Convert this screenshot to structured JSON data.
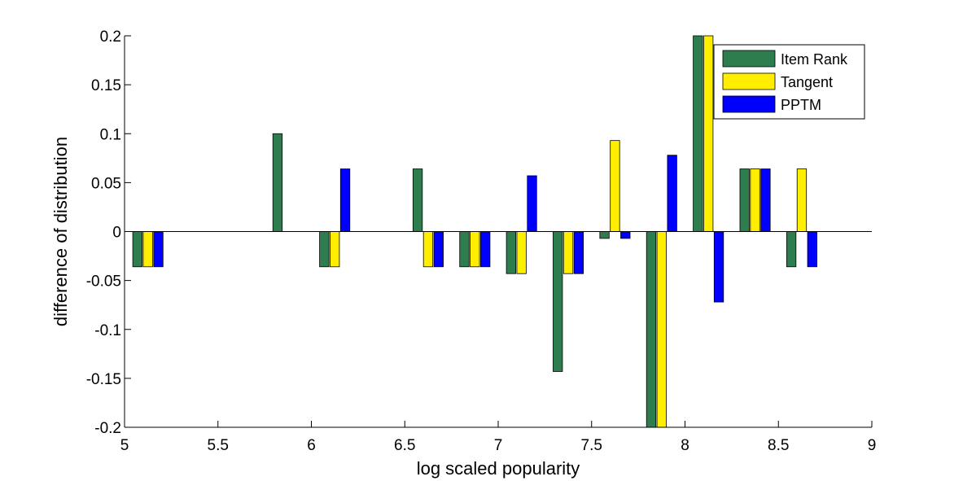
{
  "chart_data": {
    "type": "bar",
    "title": "",
    "xlabel": "log scaled popularity",
    "ylabel": "difference of distribution",
    "xlim": [
      5,
      9
    ],
    "ylim": [
      -0.2,
      0.2
    ],
    "xticks": [
      "5",
      "5.5",
      "6",
      "6.5",
      "7",
      "7.5",
      "8",
      "8.5",
      "9"
    ],
    "xtick_values": [
      5,
      5.5,
      6,
      6.5,
      7,
      7.5,
      8,
      8.5,
      9
    ],
    "yticks": [
      "-0.2",
      "-0.15",
      "-0.1",
      "-0.05",
      "0",
      "0.05",
      "0.1",
      "0.15",
      "0.2"
    ],
    "ytick_values": [
      -0.2,
      -0.15,
      -0.1,
      -0.05,
      0,
      0.05,
      0.1,
      0.15,
      0.2
    ],
    "grid": false,
    "legend_position": "top-right",
    "bar_width": 0.05,
    "x": [
      5.125,
      5.375,
      5.625,
      5.875,
      6.125,
      6.375,
      6.625,
      6.875,
      7.125,
      7.375,
      7.625,
      7.875,
      8.125,
      8.375,
      8.625
    ],
    "series": [
      {
        "name": "Item Rank",
        "color": "#2e7d4f",
        "values": [
          -0.036,
          0,
          0,
          0.1,
          -0.036,
          0,
          0.064,
          -0.036,
          -0.043,
          -0.143,
          -0.007,
          -0.214,
          0.214,
          0.064,
          -0.036
        ]
      },
      {
        "name": "Tangent",
        "color": "#ffee00",
        "values": [
          -0.036,
          0,
          0,
          0,
          -0.036,
          0,
          -0.036,
          -0.036,
          -0.043,
          -0.043,
          0.093,
          -0.214,
          0.214,
          0.064,
          0.064
        ]
      },
      {
        "name": "PPTM",
        "color": "#0000ff",
        "values": [
          -0.036,
          0,
          0,
          0,
          0.064,
          0,
          -0.036,
          -0.036,
          0.057,
          -0.043,
          -0.007,
          0.078,
          -0.072,
          0.064,
          -0.036
        ]
      }
    ]
  }
}
